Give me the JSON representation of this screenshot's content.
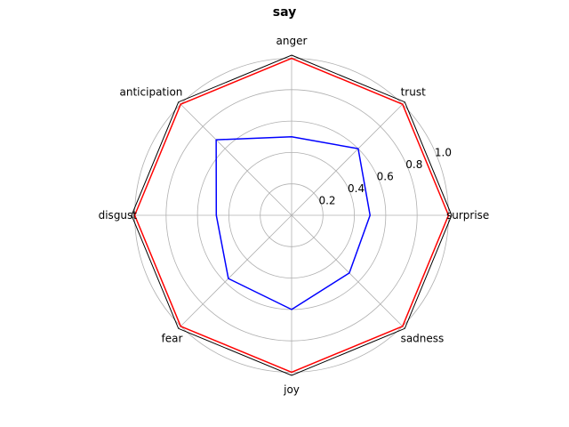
{
  "chart_data": {
    "type": "radar",
    "title": "say",
    "categories": [
      "anger",
      "trust",
      "surprise",
      "sadness",
      "joy",
      "fear",
      "disgust",
      "anticipation"
    ],
    "series": [
      {
        "color": "#ff0000",
        "values": [
          1.0,
          1.0,
          1.0,
          1.0,
          1.0,
          1.0,
          1.0,
          1.0
        ]
      },
      {
        "color": "#0000ff",
        "values": [
          0.5,
          0.6,
          0.5,
          0.52,
          0.6,
          0.57,
          0.48,
          0.68
        ]
      }
    ],
    "radial_ticks": [
      "0.2",
      "0.4",
      "0.6",
      "0.8",
      "1.0"
    ],
    "rlim": [
      0,
      1.02
    ],
    "grid": true
  }
}
